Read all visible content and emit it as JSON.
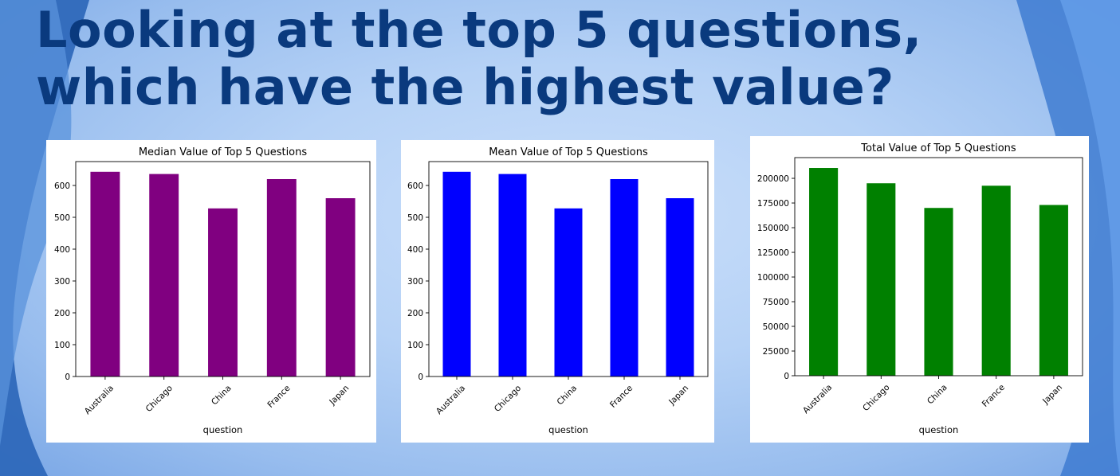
{
  "slide": {
    "title": "Looking at the top 5 questions, which have the highest value?"
  },
  "chart_data": [
    {
      "type": "bar",
      "title": "Median Value of Top 5 Questions",
      "xlabel": "question",
      "ylabel": "",
      "categories": [
        "Australia",
        "Chicago",
        "China",
        "France",
        "Japan"
      ],
      "values": [
        643,
        636,
        528,
        620,
        560
      ],
      "yticks": [
        0,
        100,
        200,
        300,
        400,
        500,
        600
      ],
      "ylim": [
        0,
        675
      ],
      "bar_color": "#800080",
      "grid": false,
      "legend": "none"
    },
    {
      "type": "bar",
      "title": "Mean Value of Top 5 Questions",
      "xlabel": "question",
      "ylabel": "",
      "categories": [
        "Australia",
        "Chicago",
        "China",
        "France",
        "Japan"
      ],
      "values": [
        643,
        636,
        528,
        620,
        560
      ],
      "yticks": [
        0,
        100,
        200,
        300,
        400,
        500,
        600
      ],
      "ylim": [
        0,
        675
      ],
      "bar_color": "#0000ff",
      "grid": false,
      "legend": "none"
    },
    {
      "type": "bar",
      "title": "Total Value of Top 5 Questions",
      "xlabel": "question",
      "ylabel": "",
      "categories": [
        "Australia",
        "Chicago",
        "China",
        "France",
        "Japan"
      ],
      "values": [
        210500,
        195000,
        170000,
        192500,
        173000
      ],
      "yticks": [
        0,
        25000,
        50000,
        75000,
        100000,
        125000,
        150000,
        175000,
        200000
      ],
      "ylim": [
        0,
        221000
      ],
      "bar_color": "#008000",
      "grid": false,
      "legend": "none"
    }
  ]
}
